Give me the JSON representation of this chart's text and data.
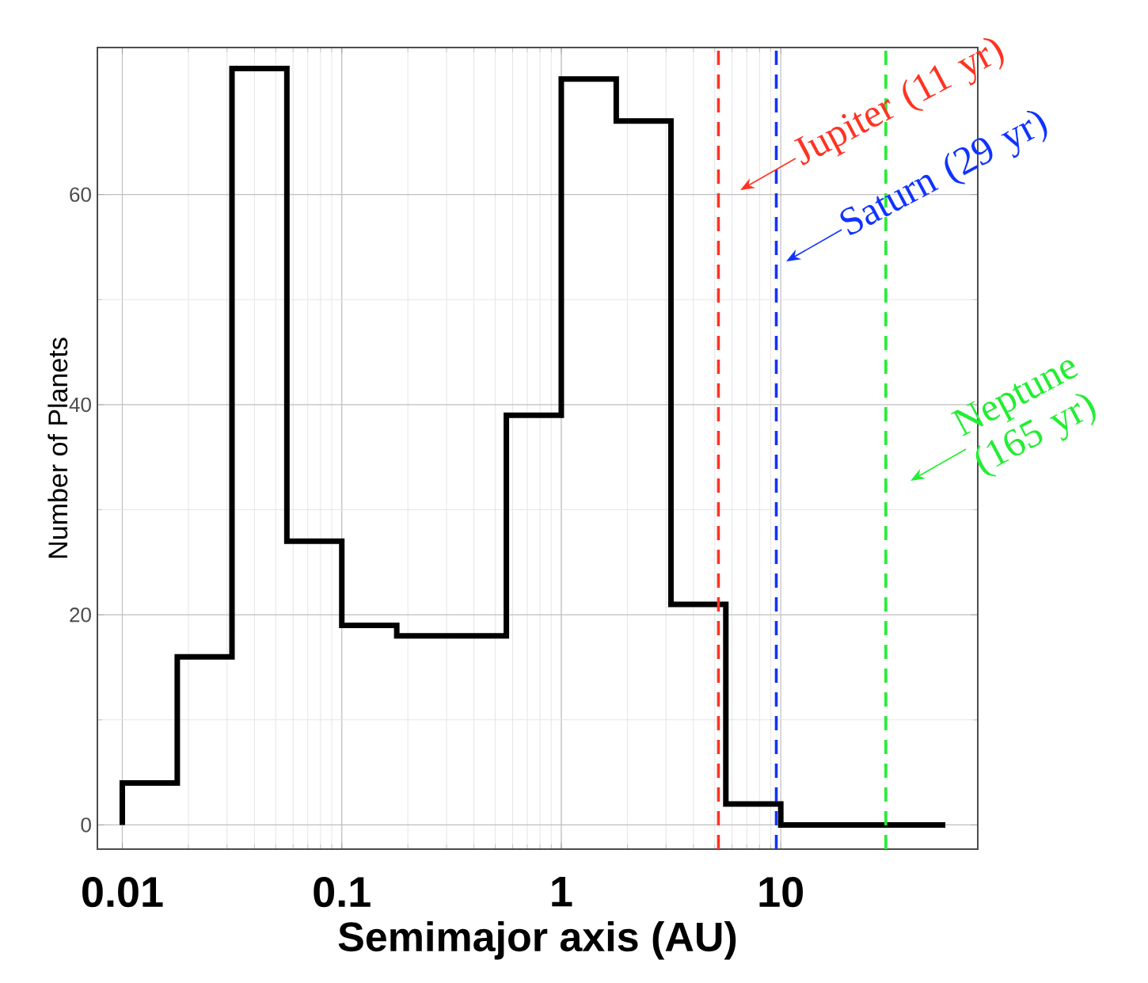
{
  "chart_data": {
    "type": "histogram",
    "xlabel": "Semimajor axis (AU)",
    "ylabel": "Number of Planets",
    "bins": [
      0.01,
      0.0178,
      0.0316,
      0.0562,
      0.1,
      0.178,
      0.316,
      0.562,
      1,
      1.78,
      3.16,
      5.62,
      10,
      17.8,
      31.6,
      56.2
    ],
    "values": [
      4,
      16,
      72,
      27,
      19,
      18,
      18,
      39,
      71,
      67,
      21,
      2,
      0,
      0,
      0
    ],
    "color": "#000000",
    "log": "x",
    "grid": true,
    "xlim": [
      0.0077,
      79
    ],
    "ylim": [
      -2.3,
      74
    ],
    "xticks": [
      0.01,
      0.1,
      1,
      10
    ],
    "yticks": [
      0,
      20,
      40,
      60
    ],
    "ref_lines": [
      {
        "axis": "x",
        "value": 5.2,
        "color": "#ff3322",
        "line_style": "dashed"
      },
      {
        "axis": "x",
        "value": 9.54,
        "color": "#1133ff",
        "line_style": "dashed"
      },
      {
        "axis": "x",
        "value": 30.1,
        "color": "#22ee33",
        "line_style": "dashed"
      }
    ],
    "annotations": [
      "Jupiter (11 yr)",
      "Saturn (29 yr)",
      "Neptune (165 yr)"
    ]
  }
}
